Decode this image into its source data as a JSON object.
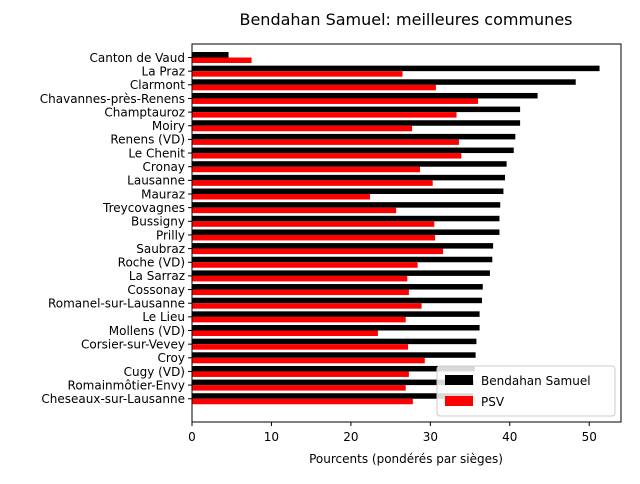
{
  "chart_data": {
    "type": "bar",
    "orientation": "horizontal",
    "title": "Bendahan Samuel: meilleures communes",
    "xlabel": "Pourcents (pondérés par sièges)",
    "ylabel": "",
    "xlim": [
      0,
      54
    ],
    "xticks": [
      0,
      10,
      20,
      30,
      40,
      50
    ],
    "grid": false,
    "legend_position": "lower right",
    "categories": [
      "Canton de Vaud",
      "La Praz",
      "Clarmont",
      "Chavannes-près-Renens",
      "Champtauroz",
      "Moiry",
      "Renens (VD)",
      "Le Chenit",
      "Cronay",
      "Lausanne",
      "Mauraz",
      "Treycovagnes",
      "Bussigny",
      "Prilly",
      "Saubraz",
      "Roche (VD)",
      "La Sarraz",
      "Cossonay",
      "Romanel-sur-Lausanne",
      "Le Lieu",
      "Mollens (VD)",
      "Corsier-sur-Vevey",
      "Croy",
      "Cugy (VD)",
      "Romainmôtier-Envy",
      "Cheseaux-sur-Lausanne"
    ],
    "series": [
      {
        "name": "Bendahan Samuel",
        "color": "#000000",
        "values": [
          4.6,
          51.3,
          48.3,
          43.5,
          41.3,
          41.3,
          40.7,
          40.5,
          39.6,
          39.4,
          39.2,
          38.8,
          38.7,
          38.7,
          37.9,
          37.8,
          37.5,
          36.6,
          36.5,
          36.2,
          36.2,
          35.8,
          35.7,
          35.6,
          35.5,
          35.4
        ]
      },
      {
        "name": "PSV",
        "color": "#ff0000",
        "values": [
          7.5,
          26.5,
          30.7,
          36.0,
          33.3,
          27.7,
          33.6,
          33.9,
          28.7,
          30.3,
          22.4,
          25.7,
          30.5,
          30.6,
          31.6,
          28.4,
          27.1,
          27.3,
          28.9,
          26.9,
          23.4,
          27.2,
          29.3,
          27.3,
          26.9,
          27.8
        ]
      }
    ]
  }
}
